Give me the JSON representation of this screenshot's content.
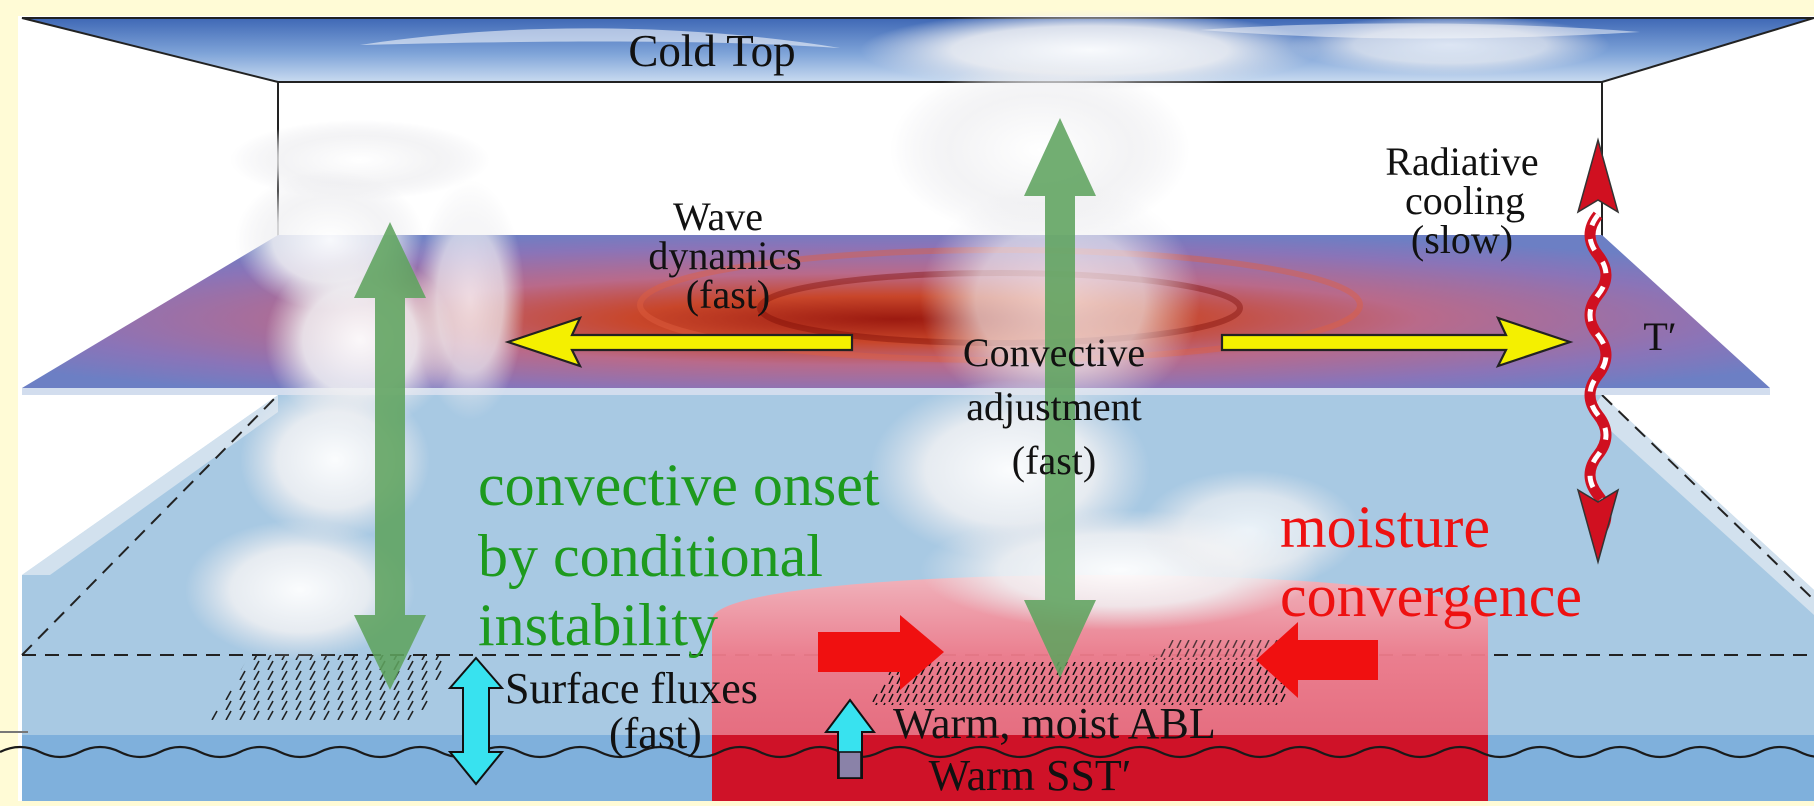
{
  "labels": {
    "cold_top": "Cold Top",
    "wave": [
      "Wave",
      "dynamics",
      "(fast)"
    ],
    "radiative": [
      "Radiative",
      "cooling",
      "(slow)"
    ],
    "t_prime": "T′",
    "convective_adjustment": [
      "Convective",
      "adjustment",
      "(fast)"
    ],
    "onset": [
      "convective onset",
      "by conditional",
      "instability"
    ],
    "moisture": [
      "moisture",
      "convergence"
    ],
    "surface_fluxes": [
      "Surface fluxes",
      "(fast)"
    ],
    "abl": "Warm, moist ABL",
    "sst": "Warm SST′"
  },
  "colors": {
    "onset_text": "#1e9a1e",
    "moisture_text": "#ee1111",
    "green_arrow": "#5ea35e",
    "yellow_arrow": "#f4f000",
    "cyan_arrow": "#38e2ef",
    "red_arrow": "#f01010",
    "cold_top": "#5a82c8",
    "warm_sst": "#cc1020",
    "warm_abl": "#ee6e7e",
    "ocean": "#a6c8e2"
  }
}
